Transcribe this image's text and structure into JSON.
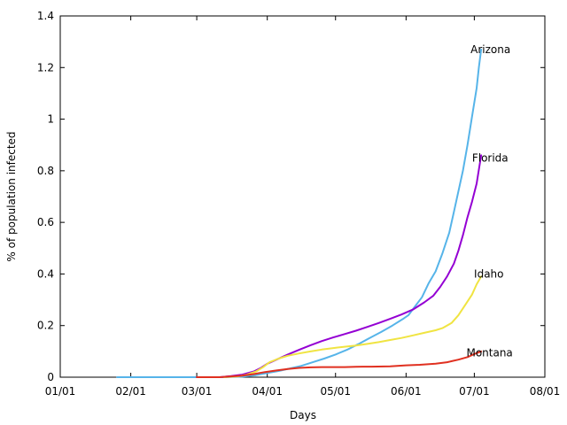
{
  "chart_data": {
    "type": "line",
    "title": "",
    "xlabel": "Days",
    "ylabel": "% of population infected",
    "xlim": [
      0,
      212
    ],
    "ylim": [
      0,
      1.4
    ],
    "grid": false,
    "x_ticks": [
      {
        "day": 0,
        "label": "01/01"
      },
      {
        "day": 31,
        "label": "02/01"
      },
      {
        "day": 60,
        "label": "03/01"
      },
      {
        "day": 91,
        "label": "04/01"
      },
      {
        "day": 121,
        "label": "05/01"
      },
      {
        "day": 152,
        "label": "06/01"
      },
      {
        "day": 182,
        "label": "07/01"
      },
      {
        "day": 213,
        "label": "08/01"
      }
    ],
    "y_ticks": [
      {
        "value": 0,
        "label": "0"
      },
      {
        "value": 0.2,
        "label": "0.2"
      },
      {
        "value": 0.4,
        "label": "0.4"
      },
      {
        "value": 0.6,
        "label": "0.6"
      },
      {
        "value": 0.8,
        "label": "0.8"
      },
      {
        "value": 1.0,
        "label": "1"
      },
      {
        "value": 1.2,
        "label": "1.2"
      },
      {
        "value": 1.4,
        "label": "1.4"
      }
    ],
    "series": [
      {
        "name": "Arizona",
        "label": "Arizona",
        "color": "#56b4e9",
        "label_anchor": "end",
        "label_at": [
          187,
          1.27
        ],
        "points": [
          [
            25,
            0
          ],
          [
            60,
            0
          ],
          [
            72,
            0
          ],
          [
            80,
            0.002
          ],
          [
            86,
            0.008
          ],
          [
            91,
            0.016
          ],
          [
            96,
            0.024
          ],
          [
            101,
            0.034
          ],
          [
            106,
            0.044
          ],
          [
            111,
            0.058
          ],
          [
            116,
            0.072
          ],
          [
            121,
            0.088
          ],
          [
            126,
            0.106
          ],
          [
            131,
            0.128
          ],
          [
            136,
            0.152
          ],
          [
            141,
            0.175
          ],
          [
            146,
            0.2
          ],
          [
            151,
            0.228
          ],
          [
            153,
            0.24
          ],
          [
            156,
            0.275
          ],
          [
            159,
            0.31
          ],
          [
            162,
            0.365
          ],
          [
            165,
            0.41
          ],
          [
            168,
            0.48
          ],
          [
            171,
            0.56
          ],
          [
            173,
            0.64
          ],
          [
            175,
            0.72
          ],
          [
            177,
            0.8
          ],
          [
            179,
            0.9
          ],
          [
            181,
            1.01
          ],
          [
            183,
            1.12
          ],
          [
            184,
            1.2
          ],
          [
            185,
            1.27
          ]
        ]
      },
      {
        "name": "Florida",
        "label": "Florida",
        "color": "#9400d3",
        "label_anchor": "end",
        "label_at": [
          186,
          0.85
        ],
        "points": [
          [
            60,
            0
          ],
          [
            70,
            0
          ],
          [
            75,
            0.004
          ],
          [
            80,
            0.01
          ],
          [
            85,
            0.022
          ],
          [
            88,
            0.035
          ],
          [
            91,
            0.052
          ],
          [
            95,
            0.068
          ],
          [
            100,
            0.088
          ],
          [
            105,
            0.106
          ],
          [
            110,
            0.124
          ],
          [
            115,
            0.14
          ],
          [
            120,
            0.154
          ],
          [
            125,
            0.167
          ],
          [
            130,
            0.18
          ],
          [
            135,
            0.195
          ],
          [
            140,
            0.21
          ],
          [
            145,
            0.226
          ],
          [
            150,
            0.243
          ],
          [
            155,
            0.262
          ],
          [
            160,
            0.29
          ],
          [
            164,
            0.316
          ],
          [
            167,
            0.35
          ],
          [
            170,
            0.39
          ],
          [
            173,
            0.44
          ],
          [
            175,
            0.49
          ],
          [
            177,
            0.55
          ],
          [
            179,
            0.62
          ],
          [
            181,
            0.68
          ],
          [
            183,
            0.75
          ],
          [
            185,
            0.86
          ]
        ]
      },
      {
        "name": "Idaho",
        "label": "Idaho",
        "color": "#f0e442",
        "label_anchor": "end",
        "label_at": [
          184,
          0.4
        ],
        "points": [
          [
            72,
            0
          ],
          [
            78,
            0.003
          ],
          [
            82,
            0.01
          ],
          [
            86,
            0.022
          ],
          [
            89,
            0.038
          ],
          [
            92,
            0.058
          ],
          [
            96,
            0.072
          ],
          [
            100,
            0.083
          ],
          [
            105,
            0.092
          ],
          [
            110,
            0.1
          ],
          [
            115,
            0.107
          ],
          [
            120,
            0.113
          ],
          [
            125,
            0.118
          ],
          [
            130,
            0.123
          ],
          [
            135,
            0.129
          ],
          [
            140,
            0.136
          ],
          [
            145,
            0.144
          ],
          [
            150,
            0.152
          ],
          [
            155,
            0.162
          ],
          [
            160,
            0.172
          ],
          [
            165,
            0.182
          ],
          [
            168,
            0.19
          ],
          [
            172,
            0.21
          ],
          [
            175,
            0.24
          ],
          [
            178,
            0.28
          ],
          [
            181,
            0.32
          ],
          [
            183,
            0.36
          ],
          [
            185,
            0.39
          ]
        ]
      },
      {
        "name": "Montana",
        "label": "Montana",
        "color": "#e03020",
        "label_anchor": "end",
        "label_at": [
          188,
          0.095
        ],
        "points": [
          [
            60,
            0
          ],
          [
            70,
            0
          ],
          [
            75,
            0.003
          ],
          [
            80,
            0.006
          ],
          [
            85,
            0.012
          ],
          [
            90,
            0.02
          ],
          [
            95,
            0.026
          ],
          [
            100,
            0.032
          ],
          [
            105,
            0.036
          ],
          [
            110,
            0.038
          ],
          [
            115,
            0.039
          ],
          [
            120,
            0.039
          ],
          [
            125,
            0.039
          ],
          [
            130,
            0.04
          ],
          [
            133,
            0.041
          ],
          [
            137,
            0.041
          ],
          [
            145,
            0.042
          ],
          [
            152,
            0.046
          ],
          [
            158,
            0.048
          ],
          [
            165,
            0.052
          ],
          [
            170,
            0.058
          ],
          [
            175,
            0.068
          ],
          [
            179,
            0.078
          ],
          [
            182,
            0.09
          ],
          [
            185,
            0.1
          ]
        ]
      }
    ]
  }
}
